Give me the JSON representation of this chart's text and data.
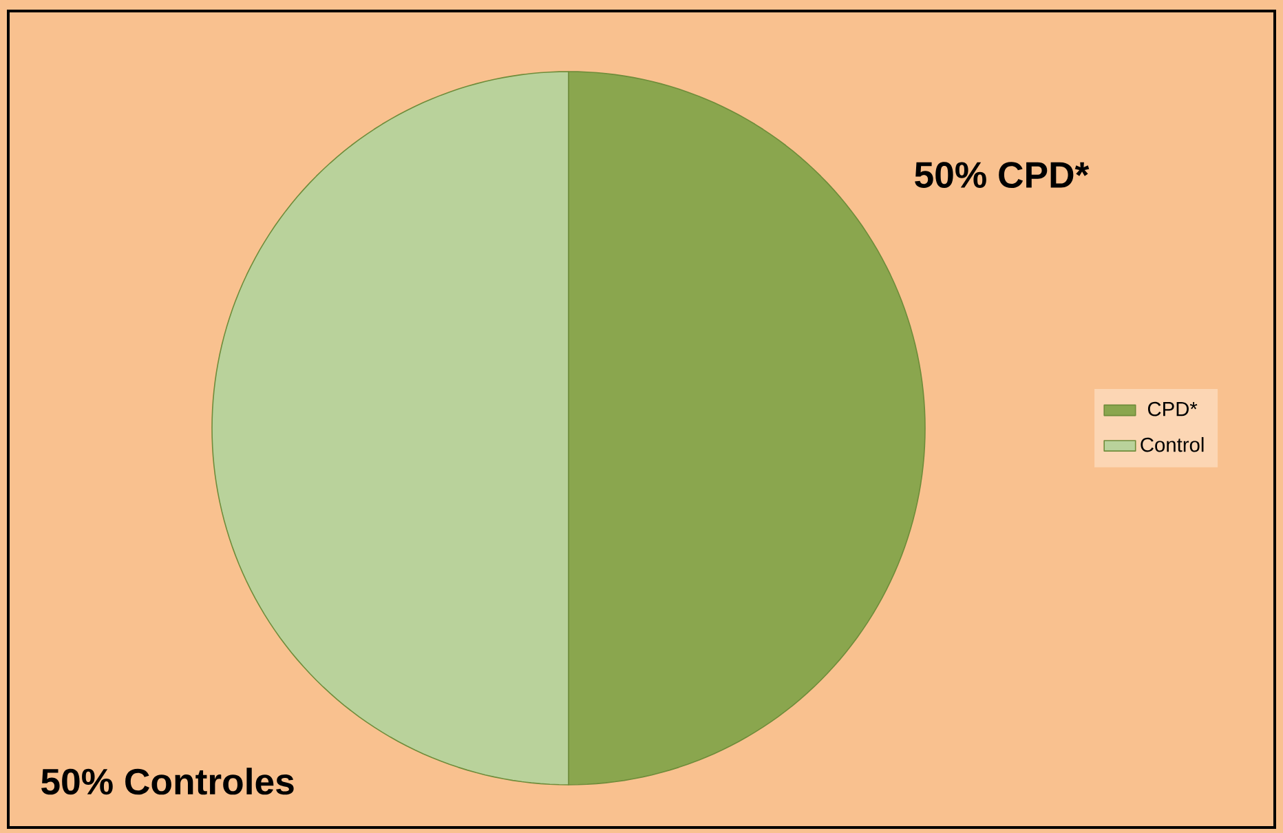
{
  "chart_data": {
    "type": "pie",
    "categories": [
      "CPD*",
      "Control"
    ],
    "values": [
      50,
      50
    ],
    "colors": [
      "#8aa64e",
      "#b9d29b"
    ],
    "value_labels": [
      "50% CPD*",
      "50% Controles"
    ],
    "legend": "right"
  }
}
